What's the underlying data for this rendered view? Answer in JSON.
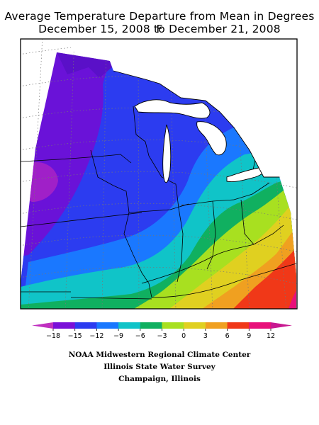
{
  "title": {
    "line1": "Average Temperature Departure from Mean in Degrees F",
    "line2": "December 15, 2008 to December 21, 2008"
  },
  "legend": {
    "ticks": [
      "−18",
      "−15",
      "−12",
      "−9",
      "−6",
      "−3",
      "0",
      "3",
      "6",
      "9",
      "12"
    ],
    "colors": [
      "#c030c0",
      "#7a10d8",
      "#2c3cf0",
      "#1a78ff",
      "#10c4c8",
      "#10b060",
      "#a8e020",
      "#e0d020",
      "#f0a020",
      "#f03818",
      "#e8107a",
      "#c81890"
    ]
  },
  "credits": {
    "line1": "NOAA Midwestern Regional Climate Center",
    "line2": "Illinois State Water Survey",
    "line3": "Champaign, Illinois"
  }
}
